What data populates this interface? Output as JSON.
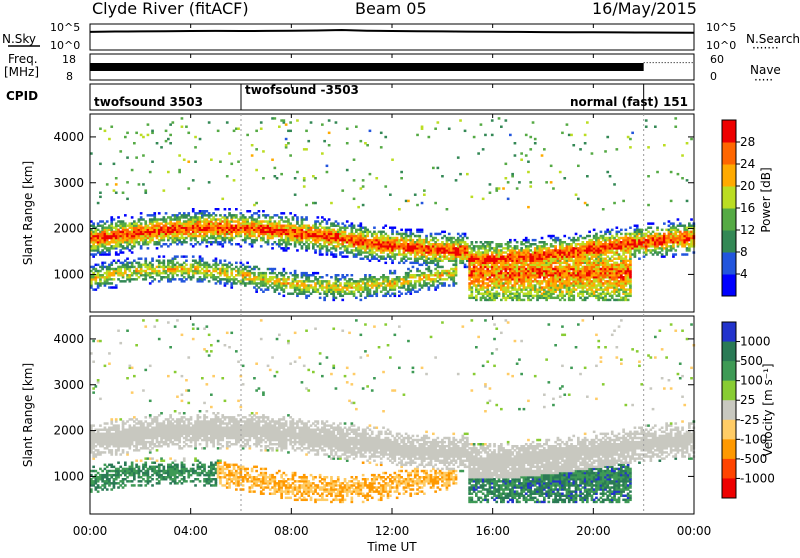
{
  "header": {
    "station": "Clyde River (fitACF)",
    "beam": "Beam 05",
    "date": "16/May/2015"
  },
  "chart_data": [
    {
      "type": "line",
      "panel": "sky-noise",
      "left_label": "N.Sky",
      "left_ticks": [
        "10^5",
        "10^0"
      ],
      "right_ticks": [
        "10^5",
        "10^0"
      ],
      "right_label": "N.Search",
      "legend_dots": "·······",
      "x": [
        0,
        1,
        2,
        3,
        4,
        5,
        6,
        7,
        8,
        9,
        10,
        11,
        12,
        13,
        14,
        15,
        16,
        17,
        18,
        19,
        20,
        21,
        22,
        23,
        24
      ],
      "values": [
        3000,
        3600,
        3800,
        4200,
        4600,
        4800,
        4500,
        4800,
        5200,
        5600,
        7000,
        5200,
        4600,
        4200,
        3800,
        3400,
        3200,
        3000,
        2800,
        2600,
        2500,
        2400,
        2300,
        2200,
        2100
      ],
      "yscale": "log"
    },
    {
      "type": "line",
      "panel": "frequency-nave",
      "left_label": "Freq.",
      "left_unit": "[MHz]",
      "left_ticks": [
        "18",
        "8"
      ],
      "right_ticks": [
        "60",
        "0"
      ],
      "right_label": "Nave",
      "legend_dots": "·····",
      "freq_mhz": [
        0,
        24,
        16,
        16
      ],
      "nave_segments": [
        {
          "from": 0,
          "to": 22,
          "value": 30
        },
        {
          "from": 22,
          "to": 24,
          "value": 40
        }
      ]
    },
    {
      "type": "table",
      "panel": "cpid",
      "label": "CPID",
      "segments": [
        {
          "from": 0,
          "to": 6,
          "text": "twofsound 3503"
        },
        {
          "from": 6,
          "to": 22,
          "text": "twofsound -3503"
        },
        {
          "from": 22,
          "to": 24,
          "text": "normal (fast) 151"
        }
      ]
    },
    {
      "type": "heatmap",
      "panel": "power",
      "ylabel": "Slant Range [km]",
      "yticks": [
        1000,
        2000,
        3000,
        4000
      ],
      "ylim": [
        180,
        4500
      ],
      "xlim": [
        0,
        24
      ],
      "colorbar": {
        "label": "Power [dB]",
        "ticks": [
          "4",
          "8",
          "12",
          "16",
          "20",
          "24",
          "28"
        ],
        "colors": [
          "#0000ff",
          "#2255dd",
          "#338855",
          "#55aa44",
          "#bbdd22",
          "#ffaa00",
          "#ff6600",
          "#ee0000"
        ]
      }
    },
    {
      "type": "heatmap",
      "panel": "velocity",
      "ylabel": "Slant Range [km]",
      "yticks": [
        1000,
        2000,
        3000,
        4000
      ],
      "ylim": [
        180,
        4500
      ],
      "xlim": [
        0,
        24
      ],
      "colorbar": {
        "label": "Velocity [m s⁻¹]",
        "ticks": [
          "1000",
          "500",
          "100",
          "25",
          "-25",
          "-100",
          "-500",
          "-1000"
        ],
        "colors": [
          "#2233cc",
          "#2a7a55",
          "#3e9a55",
          "#88cc33",
          "#c8c8c0",
          "#ffcc66",
          "#ff9900",
          "#ff4400",
          "#ee0000"
        ]
      }
    }
  ],
  "xaxis": {
    "ticks": [
      "00:00",
      "04:00",
      "08:00",
      "12:00",
      "16:00",
      "20:00",
      "00:00"
    ],
    "label": "Time UT"
  }
}
